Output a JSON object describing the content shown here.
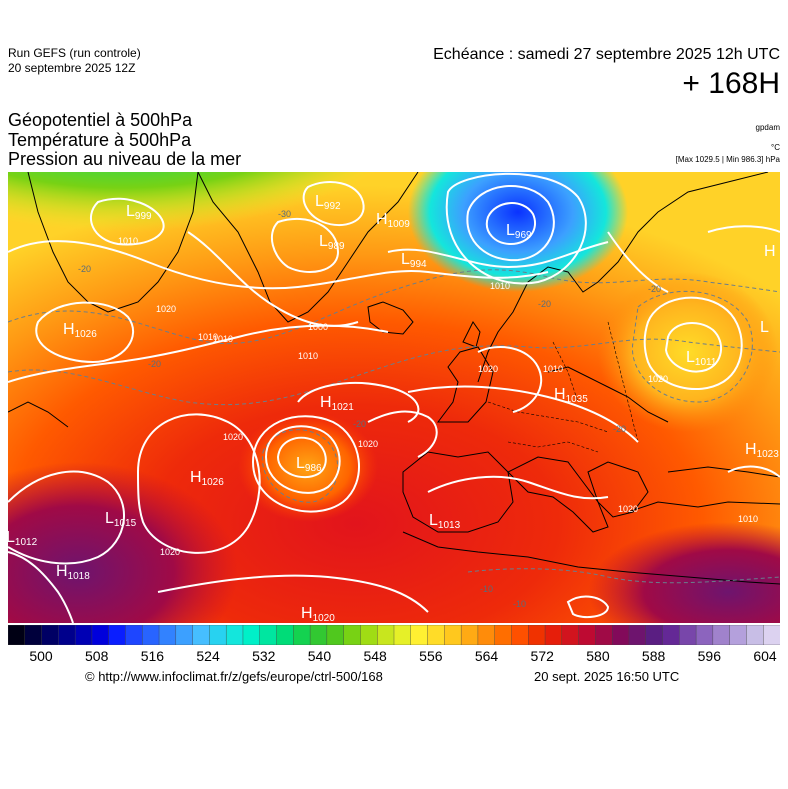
{
  "header": {
    "run": "Run GEFS (run controle)",
    "run_date": "20 septembre 2025 12Z",
    "echeance": "Echéance : samedi 27 septembre 2025 12h UTC",
    "lead": "+ 168H"
  },
  "params": {
    "line1": "Géopotentiel à 500hPa",
    "line2": "Température à 500hPa",
    "line3": "Pression au niveau de la mer"
  },
  "units": {
    "geopotential": "gpdam",
    "temperature": "°C",
    "pressure": "[Max 1029.5 | Min 986.3] hPa"
  },
  "colorbar": {
    "ticks": [
      "500",
      "508",
      "516",
      "524",
      "532",
      "540",
      "548",
      "556",
      "564",
      "572",
      "580",
      "588",
      "596",
      "604"
    ],
    "colors": [
      "#000014",
      "#00003c",
      "#000064",
      "#00008c",
      "#0000b4",
      "#0000dc",
      "#0a1eff",
      "#1e46ff",
      "#2864ff",
      "#3282ff",
      "#3ca0ff",
      "#46beff",
      "#28d2f0",
      "#14e6dc",
      "#00f0c8",
      "#00e6a0",
      "#00dc78",
      "#14d250",
      "#32c832",
      "#50c81e",
      "#78d214",
      "#a0dc14",
      "#c8e61e",
      "#e6f028",
      "#fff032",
      "#ffdc28",
      "#ffc81e",
      "#ffaa14",
      "#ff8c0a",
      "#ff6e00",
      "#ff5000",
      "#f03200",
      "#e61e0a",
      "#d2141e",
      "#be0a32",
      "#a00a46",
      "#820a5a",
      "#6e146e",
      "#5a1e82",
      "#642896",
      "#7846aa",
      "#8c64be",
      "#a082cc",
      "#b4a0dc",
      "#c8bee6",
      "#dcd2f0"
    ]
  },
  "pressure_centers": [
    {
      "type": "L",
      "value": "999"
    },
    {
      "type": "L",
      "value": "992"
    },
    {
      "type": "L",
      "value": "989"
    },
    {
      "type": "H",
      "value": "1009"
    },
    {
      "type": "L",
      "value": "969"
    },
    {
      "type": "L",
      "value": "994"
    },
    {
      "type": "H",
      "value": "1026"
    },
    {
      "type": "L",
      "value": "1011"
    },
    {
      "type": "H",
      "value": "1021"
    },
    {
      "type": "H",
      "value": "1035"
    },
    {
      "type": "L",
      "value": "986"
    },
    {
      "type": "H",
      "value": "1026"
    },
    {
      "type": "L",
      "value": "1015"
    },
    {
      "type": "L",
      "value": "1013"
    },
    {
      "type": "L",
      "value": "1012"
    },
    {
      "type": "H",
      "value": "1018"
    },
    {
      "type": "H",
      "value": "1020"
    },
    {
      "type": "H",
      "value": "1023"
    },
    {
      "type": "H",
      "value": ""
    },
    {
      "type": "L",
      "value": ""
    }
  ],
  "isobar_labels": [
    "1010",
    "1010",
    "1020",
    "1010",
    "1000",
    "1010",
    "1010",
    "1020",
    "1020",
    "1020",
    "1020",
    "1020",
    "1020",
    "1010",
    "1010"
  ],
  "temp_labels": [
    "-30",
    "-20",
    "-20",
    "-20",
    "-20",
    "-20",
    "-20",
    "-10",
    "-10"
  ],
  "footer": {
    "credit": "© http://www.infoclimat.fr/z/gefs/europe/ctrl-500/168",
    "timestamp": "20 sept. 2025 16:50 UTC"
  }
}
